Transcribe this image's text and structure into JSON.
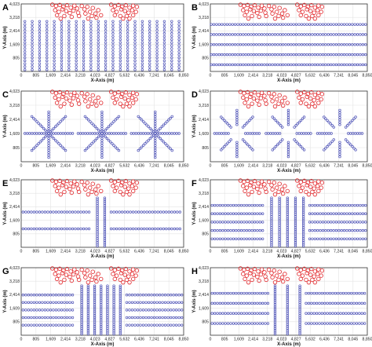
{
  "colors": {
    "turbine": "#e2262a",
    "station": "#4a4fb5",
    "grid": "#e3e3e3",
    "axis": "#333333"
  },
  "chart_data": [
    {
      "type": "scatter",
      "label": "A",
      "layout": "grid",
      "xlabel": "X-Axis (m)",
      "ylabel": "Y-Axis (m)",
      "xlim": [
        0,
        8850
      ],
      "ylim": [
        0,
        4023
      ],
      "xticks": [
        "0",
        "805",
        "1,609",
        "2,414",
        "3,218",
        "4,023",
        "4,827",
        "5,632",
        "6,436",
        "7,241",
        "8,045",
        "8,850"
      ],
      "yticks": [
        "805",
        "1,609",
        "2,414",
        "3,218",
        "4,023"
      ]
    },
    {
      "type": "scatter",
      "label": "B",
      "layout": "rows",
      "xlabel": "X-Axis (m)",
      "ylabel": "Y-Axis (m)",
      "xlim": [
        0,
        8850
      ],
      "ylim": [
        0,
        4023
      ],
      "xticks": [
        "0",
        "805",
        "1,609",
        "2,414",
        "3,218",
        "4,023",
        "4,827",
        "5,632",
        "6,436",
        "7,241",
        "8,045",
        "8,850"
      ],
      "yticks": [
        "805",
        "1,609",
        "2,414",
        "3,218",
        "4,023"
      ]
    },
    {
      "type": "scatter",
      "label": "C",
      "layout": "stars8",
      "xlabel": "X-Axis (m)",
      "ylabel": "Y-Axis (m)",
      "xlim": [
        0,
        8850
      ],
      "ylim": [
        0,
        4023
      ],
      "xticks": [
        "0",
        "805",
        "1,609",
        "2,414",
        "3,218",
        "4,023",
        "4,827",
        "5,632",
        "6,436",
        "7,241",
        "8,045",
        "8,850"
      ],
      "yticks": [
        "805",
        "1,609",
        "2,414",
        "3,218",
        "4,023"
      ]
    },
    {
      "type": "scatter",
      "label": "D",
      "layout": "stars8gap",
      "xlabel": "X-Axis (m)",
      "ylabel": "Y-Axis (m)",
      "xlim": [
        0,
        8850
      ],
      "ylim": [
        0,
        4023
      ],
      "xticks": [
        "0",
        "805",
        "1,609",
        "2,414",
        "3,218",
        "4,023",
        "4,827",
        "5,632",
        "6,436",
        "7,241",
        "8,045",
        "8,850"
      ],
      "yticks": [
        "805",
        "1,609",
        "2,414",
        "3,218",
        "4,023"
      ]
    },
    {
      "type": "scatter",
      "label": "E",
      "layout": "cross2",
      "xlabel": "X-Axis (m)",
      "ylabel": "Y-Axis (m)",
      "xlim": [
        0,
        8850
      ],
      "ylim": [
        0,
        4023
      ],
      "xticks": [
        "0",
        "805",
        "1,609",
        "2,414",
        "3,218",
        "4,023",
        "4,827",
        "5,632",
        "6,436",
        "7,241",
        "8,045",
        "8,850"
      ],
      "yticks": [
        "805",
        "1,609",
        "2,414",
        "3,218",
        "4,023"
      ]
    },
    {
      "type": "scatter",
      "label": "F",
      "layout": "cross5",
      "xlabel": "X-Axis (m)",
      "ylabel": "Y-Axis (m)",
      "xlim": [
        0,
        8850
      ],
      "ylim": [
        0,
        4023
      ],
      "xticks": [
        "0",
        "805",
        "1,609",
        "2,414",
        "3,218",
        "4,023",
        "4,827",
        "5,632",
        "6,436",
        "7,241",
        "8,045",
        "8,850"
      ],
      "yticks": [
        "805",
        "1,609",
        "2,414",
        "3,218",
        "4,023"
      ]
    },
    {
      "type": "scatter",
      "label": "G",
      "layout": "cross7",
      "xlabel": "X-Axis (m)",
      "ylabel": "Y-Axis (m)",
      "xlim": [
        0,
        8850
      ],
      "ylim": [
        0,
        4023
      ],
      "xticks": [
        "0",
        "805",
        "1,609",
        "2,414",
        "3,218",
        "4,023",
        "4,827",
        "5,632",
        "6,436",
        "7,241",
        "8,045",
        "8,850"
      ],
      "yticks": [
        "805",
        "1,609",
        "2,414",
        "3,218",
        "4,023"
      ]
    },
    {
      "type": "scatter",
      "label": "H",
      "layout": "cross3",
      "xlabel": "X-Axis (m)",
      "ylabel": "Y-Axis (m)",
      "xlim": [
        0,
        8850
      ],
      "ylim": [
        0,
        4023
      ],
      "xticks": [
        "0",
        "805",
        "1,609",
        "2,414",
        "3,218",
        "4,023",
        "4,827",
        "5,632",
        "6,436",
        "7,241",
        "8,045",
        "8,850"
      ],
      "yticks": [
        "805",
        "1,609",
        "2,414",
        "3,218",
        "4,023"
      ]
    }
  ],
  "turbines": {
    "cluster_left": [
      [
        1700,
        3980
      ],
      [
        1900,
        3900
      ],
      [
        2100,
        3960
      ],
      [
        2300,
        3850
      ],
      [
        2500,
        3950
      ],
      [
        2700,
        3800
      ],
      [
        2900,
        3920
      ],
      [
        3050,
        3750
      ],
      [
        1850,
        3650
      ],
      [
        2050,
        3550
      ],
      [
        2250,
        3700
      ],
      [
        2450,
        3600
      ],
      [
        2650,
        3480
      ],
      [
        2850,
        3620
      ],
      [
        3100,
        3500
      ],
      [
        1950,
        3350
      ],
      [
        2350,
        3300
      ],
      [
        2750,
        3250
      ],
      [
        3150,
        3300
      ],
      [
        2150,
        3150
      ]
    ],
    "cluster_mid": [
      [
        3300,
        3900
      ],
      [
        3450,
        3700
      ],
      [
        3600,
        3850
      ],
      [
        3750,
        3550
      ],
      [
        3900,
        3780
      ],
      [
        4050,
        3450
      ],
      [
        4200,
        3650
      ],
      [
        4350,
        3350
      ],
      [
        3500,
        3450
      ],
      [
        3850,
        3300
      ],
      [
        4100,
        3200
      ],
      [
        3650,
        3150
      ]
    ],
    "cluster_right": [
      [
        4900,
        3980
      ],
      [
        5100,
        3880
      ],
      [
        5300,
        3960
      ],
      [
        5500,
        3850
      ],
      [
        5700,
        3950
      ],
      [
        5900,
        3800
      ],
      [
        6100,
        3920
      ],
      [
        6300,
        3850
      ],
      [
        5000,
        3650
      ],
      [
        5200,
        3550
      ],
      [
        5450,
        3700
      ],
      [
        5650,
        3600
      ],
      [
        5850,
        3500
      ],
      [
        6050,
        3650
      ],
      [
        6250,
        3550
      ],
      [
        5100,
        3350
      ],
      [
        5400,
        3300
      ],
      [
        5750,
        3300
      ],
      [
        6100,
        3350
      ],
      [
        5550,
        3150
      ],
      [
        5900,
        3150
      ]
    ]
  }
}
